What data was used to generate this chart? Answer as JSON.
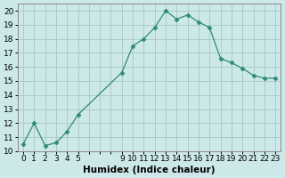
{
  "x": [
    0,
    1,
    2,
    3,
    4,
    5,
    9,
    10,
    11,
    12,
    13,
    14,
    15,
    16,
    17,
    18,
    19,
    20,
    21,
    22,
    23
  ],
  "y": [
    10.5,
    12.0,
    10.4,
    10.6,
    11.4,
    12.6,
    15.6,
    17.5,
    18.0,
    18.8,
    20.0,
    19.4,
    19.7,
    19.2,
    18.8,
    16.6,
    16.3,
    15.9,
    15.4,
    15.2,
    15.2
  ],
  "line_color": "#2e8b74",
  "marker": "D",
  "marker_size": 2.5,
  "bg_color": "#cde8e8",
  "grid_color": "#aacccc",
  "xlabel": "Humidex (Indice chaleur)",
  "xlim": [
    -0.5,
    23.5
  ],
  "ylim": [
    10,
    20.5
  ],
  "yticks": [
    10,
    11,
    12,
    13,
    14,
    15,
    16,
    17,
    18,
    19,
    20
  ],
  "xlabel_fontsize": 7.5,
  "tick_fontsize": 6.5
}
